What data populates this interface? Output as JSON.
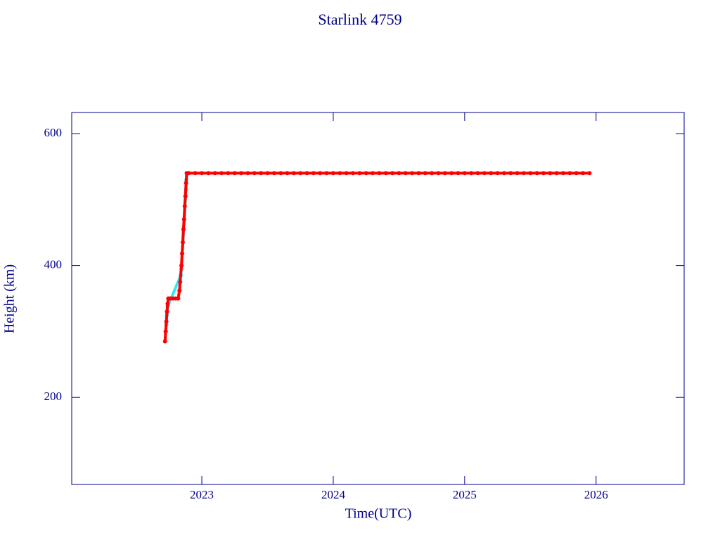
{
  "chart_data": {
    "type": "scatter",
    "title": "Starlink 4759",
    "x_label": "Time(UTC)",
    "y_label": "Height (km)",
    "xlim": [
      2022.01,
      2026.67
    ],
    "ylim": [
      68,
      632
    ],
    "xticks": [
      2023,
      2024,
      2025,
      2026
    ],
    "yticks": [
      200,
      400,
      600
    ],
    "axis_color": "#00008c",
    "connect_points": true,
    "series": [
      {
        "name": "cyan",
        "color": "#33e6ff",
        "x": [
          2022.73,
          2022.735,
          2022.74,
          2022.84,
          2022.845,
          2022.88,
          2022.883
        ],
        "values": [
          310,
          325,
          338,
          385,
          395,
          515,
          530
        ]
      },
      {
        "name": "red",
        "color": "#ff0000",
        "x": [
          2022.72,
          2022.725,
          2022.73,
          2022.735,
          2022.74,
          2022.745,
          2022.76,
          2022.78,
          2022.8,
          2022.82,
          2022.83,
          2022.835,
          2022.845,
          2022.85,
          2022.855,
          2022.86,
          2022.865,
          2022.87,
          2022.875,
          2022.88,
          2022.885,
          2022.9,
          2022.95,
          2023.0,
          2023.05,
          2023.1,
          2023.15,
          2023.2,
          2023.25,
          2023.3,
          2023.35,
          2023.4,
          2023.45,
          2023.5,
          2023.55,
          2023.6,
          2023.65,
          2023.7,
          2023.75,
          2023.8,
          2023.85,
          2023.9,
          2023.95,
          2024.0,
          2024.05,
          2024.1,
          2024.15,
          2024.2,
          2024.25,
          2024.3,
          2024.35,
          2024.4,
          2024.45,
          2024.5,
          2024.55,
          2024.6,
          2024.65,
          2024.7,
          2024.75,
          2024.8,
          2024.85,
          2024.9,
          2024.95,
          2025.0,
          2025.05,
          2025.1,
          2025.15,
          2025.2,
          2025.25,
          2025.3,
          2025.35,
          2025.4,
          2025.45,
          2025.5,
          2025.55,
          2025.6,
          2025.65,
          2025.7,
          2025.75,
          2025.8,
          2025.85,
          2025.9,
          2025.95
        ],
        "values": [
          285,
          300,
          315,
          330,
          342,
          350,
          350,
          350,
          350,
          350,
          362,
          375,
          400,
          418,
          435,
          455,
          470,
          490,
          505,
          525,
          540,
          540,
          540,
          540,
          540,
          540,
          540,
          540,
          540,
          540,
          540,
          540,
          540,
          540,
          540,
          540,
          540,
          540,
          540,
          540,
          540,
          540,
          540,
          540,
          540,
          540,
          540,
          540,
          540,
          540,
          540,
          540,
          540,
          540,
          540,
          540,
          540,
          540,
          540,
          540,
          540,
          540,
          540,
          540,
          540,
          540,
          540,
          540,
          540,
          540,
          540,
          540,
          540,
          540,
          540,
          540,
          540,
          540,
          540,
          540,
          540,
          540,
          540
        ]
      }
    ]
  }
}
